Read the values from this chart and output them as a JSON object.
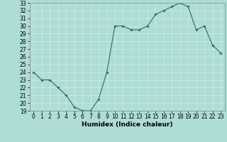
{
  "x": [
    0,
    1,
    2,
    3,
    4,
    5,
    6,
    7,
    8,
    9,
    10,
    11,
    12,
    13,
    14,
    15,
    16,
    17,
    18,
    19,
    20,
    21,
    22,
    23
  ],
  "y": [
    24,
    23,
    23,
    22,
    21,
    19.5,
    19,
    19,
    20.5,
    24,
    30,
    30,
    29.5,
    29.5,
    30,
    31.5,
    32,
    32.5,
    33,
    32.5,
    29.5,
    30,
    27.5,
    26.5
  ],
  "line_color": "#2e6b5e",
  "marker": "+",
  "bg_color": "#aeddd6",
  "grid_color": "#c8ece8",
  "xlabel": "Humidex (Indice chaleur)",
  "ylim": [
    19,
    33
  ],
  "xlim": [
    -0.5,
    23.5
  ],
  "yticks": [
    19,
    20,
    21,
    22,
    23,
    24,
    25,
    26,
    27,
    28,
    29,
    30,
    31,
    32,
    33
  ],
  "xticks": [
    0,
    1,
    2,
    3,
    4,
    5,
    6,
    7,
    8,
    9,
    10,
    11,
    12,
    13,
    14,
    15,
    16,
    17,
    18,
    19,
    20,
    21,
    22,
    23
  ],
  "label_fontsize": 6.5,
  "tick_fontsize": 5.5,
  "line_width": 0.8,
  "marker_size": 3,
  "marker_edge_width": 0.8
}
